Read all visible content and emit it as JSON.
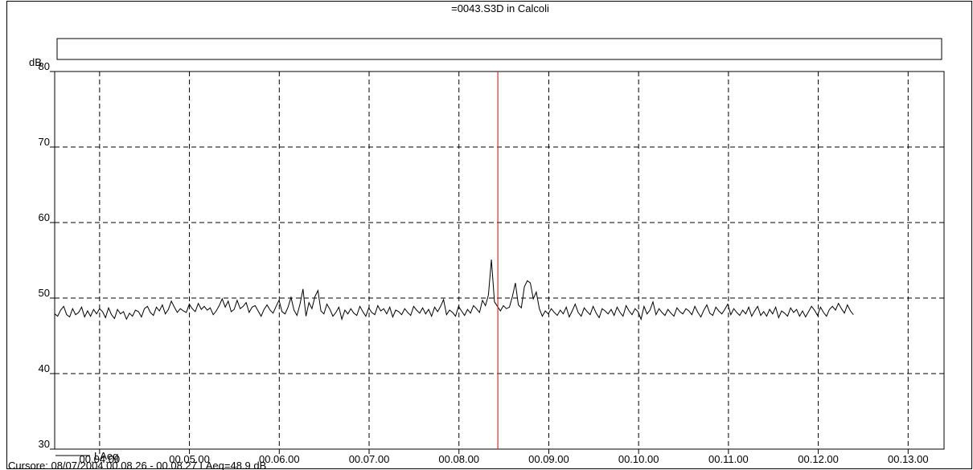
{
  "chart_data": {
    "type": "line",
    "title": "=0043.S3D in Calcoli",
    "ylabel": "dB",
    "xlabel": "",
    "ylim": [
      30,
      80
    ],
    "yticks": [
      30,
      40,
      50,
      60,
      70,
      80
    ],
    "xrange_minutes": [
      3.5,
      13.4
    ],
    "xtick_labels": [
      "00.04.00",
      "00.05.00",
      "00.06.00",
      "00.07.00",
      "00.08.00",
      "00.09.00",
      "00.10.00",
      "00.11.00",
      "00.12.00",
      "00.13.00"
    ],
    "xtick_minutes": [
      4,
      5,
      6,
      7,
      8,
      9,
      10,
      11,
      12,
      13
    ],
    "grid": true,
    "legend": {
      "position": "bottom-left",
      "entries": [
        "LAeq"
      ]
    },
    "cursor_minute": 8.433,
    "cursor_color": "#e8262a",
    "line_color": "#000000",
    "series": [
      {
        "name": "LAeq",
        "x_start_minute": 3.5,
        "x_step_minute": 0.0333,
        "values": [
          47.9,
          47.6,
          48.4,
          48.9,
          47.8,
          47.5,
          48.6,
          47.8,
          48.1,
          48.8,
          47.5,
          48.3,
          47.6,
          48.5,
          47.9,
          48.6,
          48.2,
          47.4,
          48.7,
          47.8,
          47.3,
          48.5,
          47.9,
          48.2,
          47.2,
          48.0,
          47.6,
          48.4,
          48.2,
          47.5,
          48.6,
          48.9,
          48.1,
          47.7,
          48.8,
          48.3,
          49.1,
          47.9,
          48.5,
          49.6,
          48.8,
          48.1,
          48.6,
          48.3,
          48.1,
          49.2,
          48.6,
          48.2,
          49.3,
          48.5,
          48.9,
          48.4,
          48.7,
          47.8,
          48.3,
          49.0,
          49.9,
          48.8,
          49.6,
          48.2,
          48.5,
          49.7,
          48.6,
          48.9,
          49.4,
          48.1,
          48.8,
          49.0,
          48.3,
          47.6,
          48.5,
          49.1,
          48.4,
          48.0,
          48.9,
          49.7,
          48.2,
          47.9,
          48.8,
          50.1,
          48.4,
          47.7,
          49.2,
          51.2,
          47.6,
          49.4,
          48.6,
          50.2,
          51.0,
          48.3,
          47.9,
          49.2,
          48.5,
          47.6,
          48.1,
          48.8,
          47.2,
          48.4,
          47.9,
          48.6,
          48.0,
          47.7,
          48.9,
          48.2,
          47.6,
          48.7,
          48.1,
          47.8,
          49.0,
          48.3,
          48.6,
          47.9,
          48.8,
          47.5,
          48.4,
          48.2,
          47.8,
          48.6,
          48.1,
          47.7,
          48.9,
          48.4,
          48.0,
          48.7,
          47.9,
          48.5,
          47.6,
          48.8,
          48.2,
          48.9,
          49.8,
          47.8,
          48.4,
          48.1,
          47.6,
          48.9,
          48.3,
          47.7,
          48.5,
          48.0,
          49.0,
          48.6,
          48.1,
          49.7,
          49.0,
          50.4,
          55.1,
          49.5,
          48.9,
          48.3,
          49.0,
          48.6,
          48.8,
          50.2,
          52.0,
          49.1,
          48.7,
          51.5,
          52.3,
          52.0,
          49.9,
          50.8,
          48.6,
          47.6,
          48.3,
          47.9,
          48.6,
          48.1,
          47.7,
          48.4,
          47.9,
          48.8,
          47.5,
          48.3,
          49.2,
          48.1,
          47.6,
          48.7,
          48.2,
          47.8,
          48.9,
          48.0,
          47.4,
          48.6,
          48.3,
          47.9,
          48.5,
          47.7,
          48.8,
          48.1,
          47.6,
          49.0,
          48.3,
          47.8,
          48.6,
          48.2,
          47.2,
          48.9,
          47.9,
          48.4,
          49.5,
          47.8,
          48.6,
          48.1,
          47.7,
          48.5,
          48.0,
          47.6,
          48.7,
          48.2,
          47.9,
          48.6,
          48.3,
          47.8,
          48.9,
          48.1,
          47.5,
          48.4,
          49.1,
          48.0,
          47.7,
          48.8,
          48.3,
          47.9,
          48.5,
          49.2,
          47.8,
          48.6,
          48.1,
          47.7,
          48.4,
          47.9,
          48.8,
          47.6,
          48.3,
          48.9,
          47.7,
          48.2,
          47.6,
          48.5,
          47.9,
          48.8,
          47.4,
          48.3,
          48.0,
          47.6,
          48.7,
          48.1,
          48.5,
          47.6,
          48.3,
          47.5,
          48.2,
          48.9,
          48.4,
          47.7,
          48.8,
          48.1,
          47.6,
          48.5,
          48.9,
          48.4,
          49.3,
          48.6,
          48.0,
          49.1,
          48.3,
          47.8
        ]
      }
    ]
  },
  "footer": {
    "legend_label": "LAeq",
    "cursor_text": "Cursore: 08/07/2004 00.08.26 - 00.08.27  LAeq=48.9 dB"
  }
}
